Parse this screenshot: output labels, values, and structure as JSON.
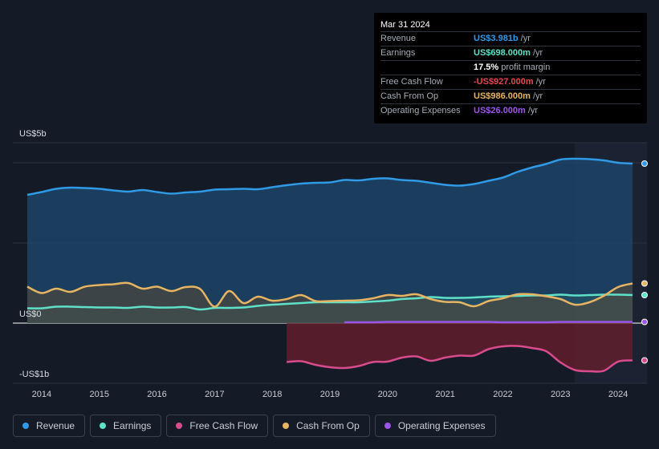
{
  "tooltip": {
    "date": "Mar 31 2024",
    "rows": [
      {
        "label": "Revenue",
        "value": "US$3.981b",
        "unit": "/yr",
        "color": "#2f9ae6"
      },
      {
        "label": "Earnings",
        "value": "US$698.000m",
        "unit": "/yr",
        "color": "#5fe0c8"
      },
      {
        "label": "",
        "value": "17.5%",
        "unit": "profit margin",
        "color": "#ffffff"
      },
      {
        "label": "Free Cash Flow",
        "value": "-US$927.000m",
        "unit": "/yr",
        "color": "#e8474f"
      },
      {
        "label": "Cash From Op",
        "value": "US$986.000m",
        "unit": "/yr",
        "color": "#e7b462"
      },
      {
        "label": "Operating Expenses",
        "value": "US$26.000m",
        "unit": "/yr",
        "color": "#9b55e8"
      }
    ]
  },
  "legend": [
    {
      "label": "Revenue",
      "color": "#2f9ae6"
    },
    {
      "label": "Earnings",
      "color": "#5fe0c8"
    },
    {
      "label": "Free Cash Flow",
      "color": "#d84b8c"
    },
    {
      "label": "Cash From Op",
      "color": "#e7b462"
    },
    {
      "label": "Operating Expenses",
      "color": "#9b55e8"
    }
  ],
  "chart_data": {
    "type": "area",
    "title": "",
    "ylabel_top": "US$5b",
    "ylabel_zero": "US$0",
    "ylabel_bottom": "-US$1b",
    "ylim": [
      -1.5,
      4.5
    ],
    "xlim": [
      2013.5,
      2024.5
    ],
    "xticks": [
      "2014",
      "2015",
      "2016",
      "2017",
      "2018",
      "2019",
      "2020",
      "2021",
      "2022",
      "2023",
      "2024"
    ],
    "series": [
      {
        "name": "Revenue",
        "color": "#2f9ae6",
        "x": [
          2013.75,
          2014,
          2014.25,
          2014.5,
          2014.75,
          2015,
          2015.25,
          2015.5,
          2015.75,
          2016,
          2016.25,
          2016.5,
          2016.75,
          2017,
          2017.25,
          2017.5,
          2017.75,
          2018,
          2018.25,
          2018.5,
          2018.75,
          2019,
          2019.25,
          2019.5,
          2019.75,
          2020,
          2020.25,
          2020.5,
          2020.75,
          2021,
          2021.25,
          2021.5,
          2021.75,
          2022,
          2022.25,
          2022.5,
          2022.75,
          2023,
          2023.25,
          2023.5,
          2023.75,
          2024,
          2024.25
        ],
        "values": [
          3.2,
          3.27,
          3.35,
          3.38,
          3.37,
          3.35,
          3.31,
          3.28,
          3.32,
          3.27,
          3.23,
          3.26,
          3.28,
          3.33,
          3.34,
          3.35,
          3.34,
          3.39,
          3.44,
          3.48,
          3.5,
          3.51,
          3.57,
          3.56,
          3.6,
          3.61,
          3.57,
          3.55,
          3.5,
          3.45,
          3.43,
          3.47,
          3.55,
          3.63,
          3.77,
          3.88,
          3.97,
          4.08,
          4.1,
          4.09,
          4.06,
          4.0,
          3.98
        ]
      },
      {
        "name": "Earnings",
        "color": "#5fe0c8",
        "x": [
          2013.75,
          2014,
          2014.25,
          2014.5,
          2014.75,
          2015,
          2015.25,
          2015.5,
          2015.75,
          2016,
          2016.25,
          2016.5,
          2016.75,
          2017,
          2017.25,
          2017.5,
          2017.75,
          2018,
          2018.25,
          2018.5,
          2018.75,
          2019,
          2019.25,
          2019.5,
          2019.75,
          2020,
          2020.25,
          2020.5,
          2020.75,
          2021,
          2021.25,
          2021.5,
          2021.75,
          2022,
          2022.25,
          2022.5,
          2022.75,
          2023,
          2023.25,
          2023.5,
          2023.75,
          2024,
          2024.25
        ],
        "values": [
          0.37,
          0.37,
          0.41,
          0.41,
          0.4,
          0.39,
          0.39,
          0.38,
          0.41,
          0.39,
          0.39,
          0.4,
          0.34,
          0.38,
          0.38,
          0.39,
          0.43,
          0.46,
          0.48,
          0.5,
          0.52,
          0.52,
          0.52,
          0.52,
          0.54,
          0.56,
          0.6,
          0.62,
          0.65,
          0.63,
          0.63,
          0.64,
          0.66,
          0.67,
          0.68,
          0.69,
          0.69,
          0.71,
          0.69,
          0.7,
          0.71,
          0.71,
          0.7
        ]
      },
      {
        "name": "Free Cash Flow",
        "color": "#d84b8c",
        "x": [
          2018.25,
          2018.5,
          2018.75,
          2019,
          2019.25,
          2019.5,
          2019.75,
          2020,
          2020.25,
          2020.5,
          2020.75,
          2021,
          2021.25,
          2021.5,
          2021.75,
          2022,
          2022.25,
          2022.5,
          2022.75,
          2023,
          2023.25,
          2023.5,
          2023.75,
          2024,
          2024.25
        ],
        "values": [
          -0.97,
          -0.95,
          -1.04,
          -1.1,
          -1.12,
          -1.07,
          -0.97,
          -0.96,
          -0.86,
          -0.83,
          -0.94,
          -0.86,
          -0.81,
          -0.81,
          -0.65,
          -0.58,
          -0.57,
          -0.62,
          -0.7,
          -0.98,
          -1.17,
          -1.2,
          -1.19,
          -0.96,
          -0.93
        ]
      },
      {
        "name": "Cash From Op",
        "color": "#e7b462",
        "x": [
          2013.75,
          2014,
          2014.25,
          2014.5,
          2014.75,
          2015,
          2015.25,
          2015.5,
          2015.75,
          2016,
          2016.25,
          2016.5,
          2016.75,
          2017,
          2017.25,
          2017.5,
          2017.75,
          2018,
          2018.25,
          2018.5,
          2018.75,
          2019,
          2019.25,
          2019.5,
          2019.75,
          2020,
          2020.25,
          2020.5,
          2020.75,
          2021,
          2021.25,
          2021.5,
          2021.75,
          2022,
          2022.25,
          2022.5,
          2022.75,
          2023,
          2023.25,
          2023.5,
          2023.75,
          2024,
          2024.25
        ],
        "values": [
          0.91,
          0.75,
          0.86,
          0.78,
          0.91,
          0.95,
          0.97,
          1.0,
          0.86,
          0.91,
          0.8,
          0.9,
          0.85,
          0.41,
          0.8,
          0.5,
          0.66,
          0.56,
          0.6,
          0.7,
          0.55,
          0.55,
          0.56,
          0.57,
          0.62,
          0.7,
          0.68,
          0.72,
          0.6,
          0.53,
          0.52,
          0.42,
          0.55,
          0.62,
          0.72,
          0.72,
          0.67,
          0.6,
          0.46,
          0.52,
          0.68,
          0.9,
          0.99
        ]
      },
      {
        "name": "Operating Expenses",
        "color": "#9b55e8",
        "x": [
          2019.25,
          2019.5,
          2019.75,
          2020,
          2020.25,
          2020.5,
          2020.75,
          2021,
          2021.25,
          2021.5,
          2021.75,
          2022,
          2022.25,
          2022.5,
          2022.75,
          2023,
          2023.25,
          2023.5,
          2023.75,
          2024,
          2024.25
        ],
        "values": [
          0.02,
          0.02,
          0.02,
          0.03,
          0.03,
          0.03,
          0.03,
          0.03,
          0.03,
          0.03,
          0.03,
          0.02,
          0.02,
          0.02,
          0.02,
          0.03,
          0.03,
          0.03,
          0.03,
          0.03,
          0.03
        ]
      }
    ]
  }
}
